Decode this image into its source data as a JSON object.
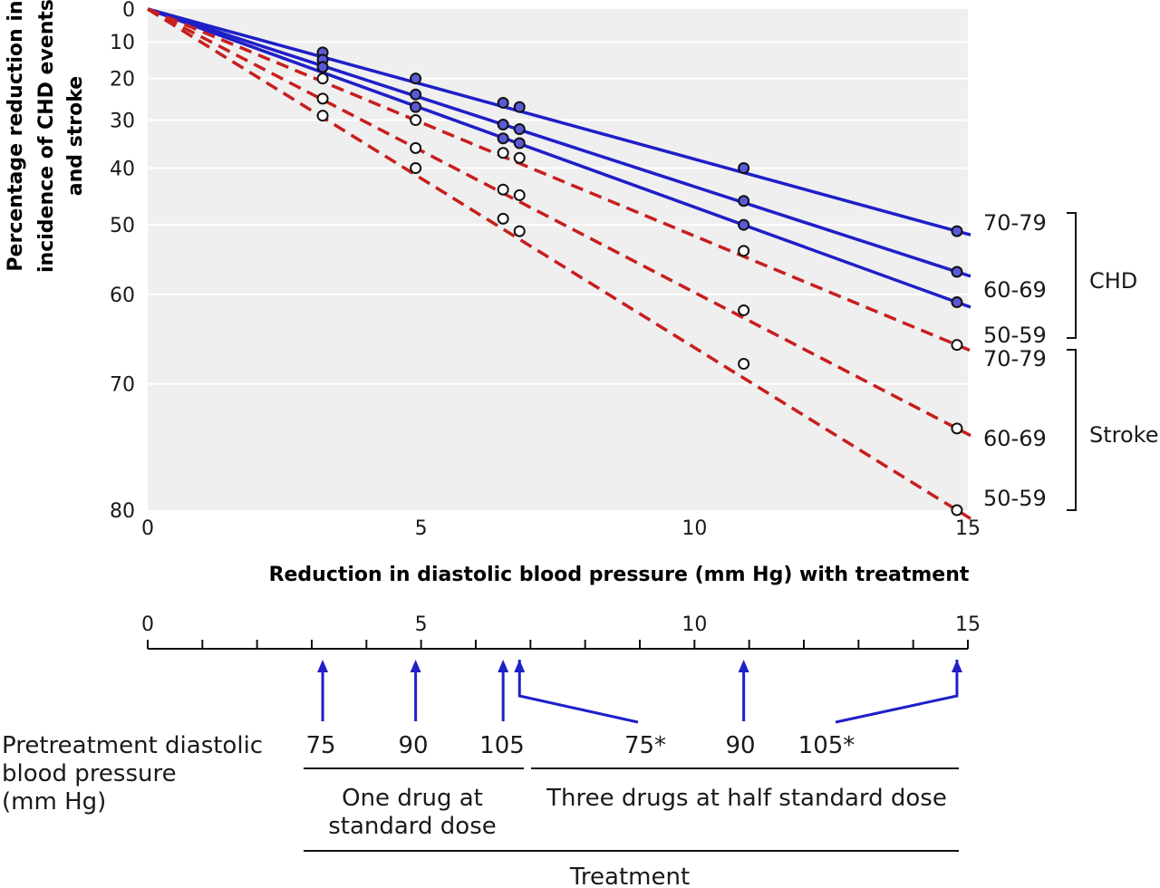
{
  "colors": {
    "chd_line": "#1f1fc8",
    "stroke_line": "#c81e1e",
    "plot_bg": "#efefef",
    "arrow": "#1f1fc8"
  },
  "chart_data": {
    "type": "line",
    "title": "",
    "xlabel": "Reduction in diastolic blood pressure (mm Hg) with treatment",
    "ylabel_lines": [
      "Percentage reduction in",
      "incidence of CHD events",
      "and stroke"
    ],
    "xlim": [
      0,
      15
    ],
    "ylim": [
      0,
      80
    ],
    "y_scale": "log(1 - y/100)",
    "y_inverted": true,
    "grid": true,
    "x_ticks": [
      "0",
      "5",
      "10",
      "15"
    ],
    "y_ticks": [
      "0",
      "10",
      "20",
      "30",
      "40",
      "50",
      "60",
      "70",
      "80"
    ],
    "x": [
      3.2,
      4.9,
      6.5,
      6.8,
      10.9,
      14.8
    ],
    "series": [
      {
        "name": "70-79",
        "group": "CHD",
        "style": "solid-filled",
        "values": [
          13,
          20,
          26,
          27,
          40,
          51
        ]
      },
      {
        "name": "60-69",
        "group": "CHD",
        "style": "solid-filled",
        "values": [
          15,
          24,
          31,
          32,
          46,
          57
        ]
      },
      {
        "name": "50-59",
        "group": "CHD",
        "style": "solid-filled",
        "values": [
          17,
          27,
          34,
          35,
          50,
          61
        ]
      },
      {
        "name": "70-79",
        "group": "Stroke",
        "style": "dashed-open",
        "values": [
          20,
          30,
          37,
          38,
          54,
          66
        ]
      },
      {
        "name": "60-69",
        "group": "Stroke",
        "style": "dashed-open",
        "values": [
          25,
          36,
          44,
          45,
          62,
          74
        ]
      },
      {
        "name": "50-59",
        "group": "Stroke",
        "style": "dashed-open",
        "values": [
          29,
          40,
          49,
          51,
          68,
          80
        ]
      }
    ],
    "right_labels": {
      "chd_label": "CHD",
      "stroke_label": "Stroke",
      "series_labels": [
        "70-79",
        "60-69",
        "50-59",
        "70-79",
        "60-69",
        "50-59"
      ]
    }
  },
  "secondary_axis": {
    "ticks": [
      "0",
      "5",
      "10",
      "15"
    ],
    "arrows": [
      {
        "from_x": 3.2,
        "label": "75"
      },
      {
        "from_x": 4.9,
        "label": "90"
      },
      {
        "from_x": 6.5,
        "label": "105"
      },
      {
        "from_x": 6.8,
        "label": "75*"
      },
      {
        "from_x": 10.9,
        "label": "90"
      },
      {
        "from_x": 14.8,
        "label": "105*"
      }
    ]
  },
  "bottom": {
    "pretreatment_lines": [
      "Pretreatment diastolic",
      "blood pressure",
      "(mm Hg)"
    ],
    "one_drug_lines": [
      "One drug at",
      "standard dose"
    ],
    "three_drugs": "Three drugs at half standard dose",
    "treatment": "Treatment"
  }
}
